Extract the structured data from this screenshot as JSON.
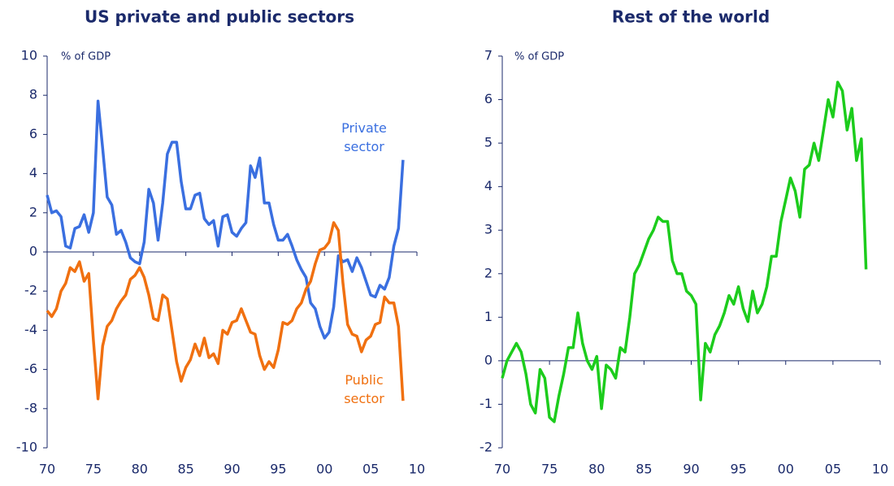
{
  "chart_data": [
    {
      "type": "line",
      "title": "US private and public sectors",
      "annotations": [
        "% of GDP"
      ],
      "x": [
        1970,
        1970.5,
        1971,
        1971.5,
        1972,
        1972.5,
        1973,
        1973.5,
        1974,
        1974.5,
        1975,
        1975.5,
        1976,
        1976.5,
        1977,
        1977.5,
        1978,
        1978.5,
        1979,
        1979.5,
        1980,
        1980.5,
        1981,
        1981.5,
        1982,
        1982.5,
        1983,
        1983.5,
        1984,
        1984.5,
        1985,
        1985.5,
        1986,
        1986.5,
        1987,
        1987.5,
        1988,
        1988.5,
        1989,
        1989.5,
        1990,
        1990.5,
        1991,
        1991.5,
        1992,
        1992.5,
        1993,
        1993.5,
        1994,
        1994.5,
        1995,
        1995.5,
        1996,
        1996.5,
        1997,
        1997.5,
        1998,
        1998.5,
        1999,
        1999.5,
        2000,
        2000.5,
        2001,
        2001.5,
        2002,
        2002.5,
        2003,
        2003.5,
        2004,
        2004.5,
        2005,
        2005.5,
        2006,
        2006.5,
        2007,
        2007.5,
        2008,
        2008.5
      ],
      "series": [
        {
          "name": "Private sector",
          "color": "#3a6fe0",
          "values": [
            2.9,
            2.0,
            2.1,
            1.8,
            0.3,
            0.2,
            1.2,
            1.3,
            1.9,
            1.0,
            2.0,
            7.7,
            5.3,
            2.8,
            2.4,
            0.9,
            1.1,
            0.5,
            -0.3,
            -0.5,
            -0.6,
            0.5,
            3.2,
            2.5,
            0.6,
            2.5,
            5.0,
            5.6,
            5.6,
            3.6,
            2.2,
            2.2,
            2.9,
            3.0,
            1.7,
            1.4,
            1.6,
            0.3,
            1.8,
            1.9,
            1.0,
            0.8,
            1.2,
            1.5,
            4.4,
            3.8,
            4.8,
            2.5,
            2.5,
            1.4,
            0.6,
            0.6,
            0.9,
            0.3,
            -0.4,
            -0.9,
            -1.3,
            -2.6,
            -2.9,
            -3.8,
            -4.4,
            -4.1,
            -2.8,
            -0.2,
            -0.5,
            -0.4,
            -1.0,
            -0.3,
            -0.8,
            -1.5,
            -2.2,
            -2.3,
            -1.7,
            -1.9,
            -1.3,
            0.3,
            1.2,
            4.7
          ]
        },
        {
          "name": "Public sector",
          "color": "#f07010",
          "values": [
            -3.0,
            -3.3,
            -2.9,
            -2.0,
            -1.6,
            -0.8,
            -1.0,
            -0.5,
            -1.5,
            -1.1,
            -4.5,
            -7.5,
            -4.8,
            -3.8,
            -3.5,
            -2.9,
            -2.5,
            -2.2,
            -1.4,
            -1.2,
            -0.8,
            -1.3,
            -2.2,
            -3.4,
            -3.5,
            -2.2,
            -2.4,
            -4.0,
            -5.6,
            -6.6,
            -5.9,
            -5.5,
            -4.7,
            -5.3,
            -4.4,
            -5.4,
            -5.2,
            -5.7,
            -4.0,
            -4.2,
            -3.6,
            -3.5,
            -2.9,
            -3.5,
            -4.1,
            -4.2,
            -5.3,
            -6.0,
            -5.6,
            -5.9,
            -5.0,
            -3.6,
            -3.7,
            -3.5,
            -2.9,
            -2.6,
            -1.9,
            -1.5,
            -0.6,
            0.1,
            0.2,
            0.5,
            1.5,
            1.1,
            -1.6,
            -3.7,
            -4.2,
            -4.3,
            -5.1,
            -4.5,
            -4.3,
            -3.7,
            -3.6,
            -2.3,
            -2.6,
            -2.6,
            -3.8,
            -7.6
          ]
        }
      ],
      "xlim": [
        1970,
        2010
      ],
      "xticks": [
        {
          "value": 1970,
          "label": "70"
        },
        {
          "value": 1975,
          "label": "75"
        },
        {
          "value": 1980,
          "label": "80"
        },
        {
          "value": 1985,
          "label": "85"
        },
        {
          "value": 1990,
          "label": "90"
        },
        {
          "value": 1995,
          "label": "95"
        },
        {
          "value": 2000,
          "label": "00"
        },
        {
          "value": 2005,
          "label": "05"
        },
        {
          "value": 2010,
          "label": "10"
        }
      ],
      "ylim": [
        -10,
        10
      ],
      "yticks": [
        -10,
        -8,
        -6,
        -4,
        -2,
        0,
        2,
        4,
        6,
        8,
        10
      ]
    },
    {
      "type": "line",
      "title": "Rest of the world",
      "annotations": [
        "% of GDP"
      ],
      "x": [
        1970,
        1970.5,
        1971,
        1971.5,
        1972,
        1972.5,
        1973,
        1973.5,
        1974,
        1974.5,
        1975,
        1975.5,
        1976,
        1976.5,
        1977,
        1977.5,
        1978,
        1978.5,
        1979,
        1979.5,
        1980,
        1980.5,
        1981,
        1981.5,
        1982,
        1982.5,
        1983,
        1983.5,
        1984,
        1984.5,
        1985,
        1985.5,
        1986,
        1986.5,
        1987,
        1987.5,
        1988,
        1988.5,
        1989,
        1989.5,
        1990,
        1990.5,
        1991,
        1991.5,
        1992,
        1992.5,
        1993,
        1993.5,
        1994,
        1994.5,
        1995,
        1995.5,
        1996,
        1996.5,
        1997,
        1997.5,
        1998,
        1998.5,
        1999,
        1999.5,
        2000,
        2000.5,
        2001,
        2001.5,
        2002,
        2002.5,
        2003,
        2003.5,
        2004,
        2004.5,
        2005,
        2005.5,
        2006,
        2006.5,
        2007,
        2007.5,
        2008,
        2008.5
      ],
      "series": [
        {
          "name": "Rest of the world",
          "color": "#1ccc1c",
          "values": [
            -0.4,
            0.0,
            0.2,
            0.4,
            0.2,
            -0.3,
            -1.0,
            -1.2,
            -0.2,
            -0.4,
            -1.3,
            -1.4,
            -0.8,
            -0.3,
            0.3,
            0.3,
            1.1,
            0.4,
            0.0,
            -0.2,
            0.1,
            -1.1,
            -0.1,
            -0.2,
            -0.4,
            0.3,
            0.2,
            1.0,
            2.0,
            2.2,
            2.5,
            2.8,
            3.0,
            3.3,
            3.2,
            3.2,
            2.3,
            2.0,
            2.0,
            1.6,
            1.5,
            1.3,
            -0.9,
            0.4,
            0.2,
            0.6,
            0.8,
            1.1,
            1.5,
            1.3,
            1.7,
            1.2,
            0.9,
            1.6,
            1.1,
            1.3,
            1.7,
            2.4,
            2.4,
            3.2,
            3.7,
            4.2,
            3.9,
            3.3,
            4.4,
            4.5,
            5.0,
            4.6,
            5.3,
            6.0,
            5.6,
            6.4,
            6.2,
            5.3,
            5.8,
            4.6,
            5.1,
            2.1
          ]
        }
      ],
      "xlim": [
        1970,
        2010
      ],
      "xticks": [
        {
          "value": 1970,
          "label": "70"
        },
        {
          "value": 1975,
          "label": "75"
        },
        {
          "value": 1980,
          "label": "80"
        },
        {
          "value": 1985,
          "label": "85"
        },
        {
          "value": 1990,
          "label": "90"
        },
        {
          "value": 1995,
          "label": "95"
        },
        {
          "value": 2000,
          "label": "00"
        },
        {
          "value": 2005,
          "label": "05"
        },
        {
          "value": 2010,
          "label": "10"
        }
      ],
      "ylim": [
        -2,
        7
      ],
      "yticks": [
        -2,
        -1,
        0,
        1,
        2,
        3,
        4,
        5,
        6,
        7
      ]
    }
  ]
}
